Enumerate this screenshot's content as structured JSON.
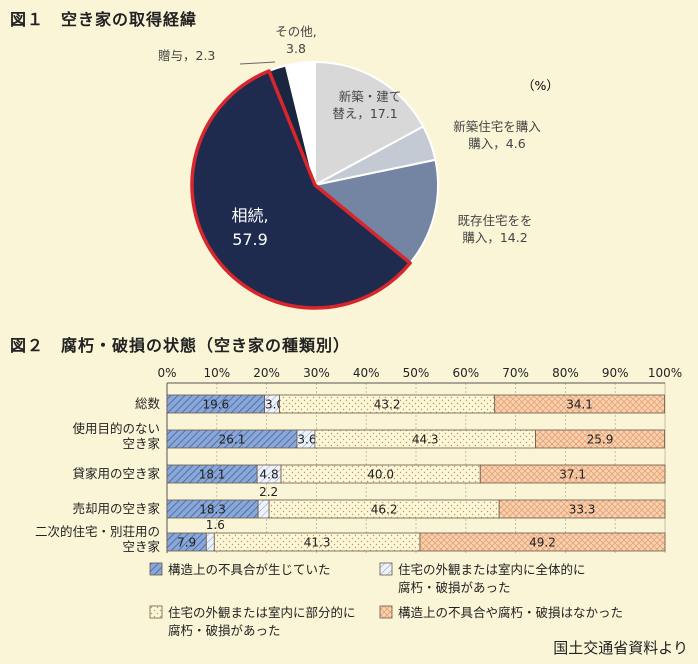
{
  "fig1": {
    "title": "図１　空き家の取得経緯",
    "unit": "（%）"
  },
  "fig2": {
    "title": "図２　腐朽・破損の状態（空き家の種類別）"
  },
  "source": "国土交通省資料より",
  "chart_data": [
    {
      "type": "pie",
      "title": "図１　空き家の取得経緯",
      "unit": "%",
      "slices": [
        {
          "label": "新築・建て替え",
          "value": 17.1,
          "text": "17.1",
          "color": "#d8d8d8"
        },
        {
          "label": "新築住宅を購入",
          "value": 4.6,
          "text": "4.6",
          "color": "#c4cad3"
        },
        {
          "label": "既存住宅を購入",
          "value": 14.2,
          "text": "14.2",
          "color": "#7385a3"
        },
        {
          "label": "相続",
          "value": 57.9,
          "text": "57.9",
          "color": "#1e2b4e",
          "highlight": "#d8262d"
        },
        {
          "label": "贈与",
          "value": 2.3,
          "text": "2.3",
          "color": "#1a2540"
        },
        {
          "label": "その他",
          "value": 3.8,
          "text": "3.8",
          "color": "#ffffff"
        }
      ]
    },
    {
      "type": "bar",
      "orientation": "horizontal",
      "stacked": true,
      "title": "図２　腐朽・破損の状態（空き家の種類別）",
      "xlim": [
        0,
        100
      ],
      "ticks": [
        "0%",
        "10%",
        "20%",
        "30%",
        "40%",
        "50%",
        "60%",
        "70%",
        "80%",
        "90%",
        "100%"
      ],
      "categories": [
        [
          "総数"
        ],
        [
          "使用目的のない",
          "空き家"
        ],
        [
          "貸家用の空き家"
        ],
        [
          "売却用の空き家"
        ],
        [
          "二次的住宅・別荘用の",
          "空き家"
        ]
      ],
      "series": [
        {
          "name": "構造上の不具合が生じていた",
          "values": [
            19.6,
            26.1,
            18.1,
            18.3,
            7.9
          ],
          "pattern": "hatch",
          "color": "#8aa7d6"
        },
        {
          "name": "住宅の外観または室内に全体的に腐朽・破損があった",
          "values": [
            3.0,
            3.6,
            4.8,
            2.2,
            1.6
          ],
          "pattern": "hatch-light",
          "color": "#dce6f4"
        },
        {
          "name": "住宅の外観または室内に部分的に腐朽・破損があった",
          "values": [
            43.2,
            44.3,
            40.0,
            46.2,
            41.3
          ],
          "pattern": "dots",
          "color": "#fbf0c8"
        },
        {
          "name": "構造上の不具合や腐朽・破損はなかった",
          "values": [
            34.1,
            25.9,
            37.1,
            33.3,
            49.2
          ],
          "pattern": "cross",
          "color": "#f7c9a4"
        }
      ],
      "legend": [
        {
          "lines": [
            "構造上の不具合が生じていた"
          ]
        },
        {
          "lines": [
            "住宅の外観または室内に全体的に",
            "腐朽・破損があった"
          ]
        },
        {
          "lines": [
            "住宅の外観または室内に部分的に",
            "腐朽・破損があった"
          ]
        },
        {
          "lines": [
            "構造上の不具合や腐朽・破損はなかった"
          ]
        }
      ],
      "outside_labels": [
        null,
        null,
        null,
        "2.2",
        "1.6"
      ]
    }
  ]
}
